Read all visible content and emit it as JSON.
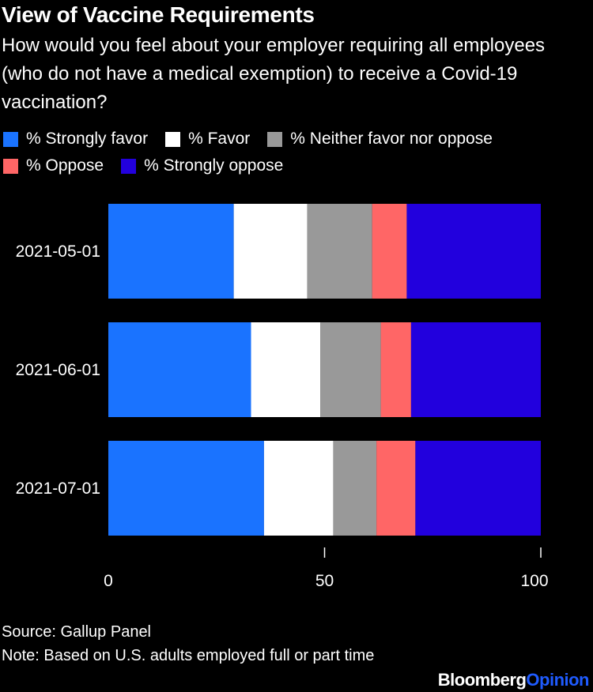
{
  "title": "View of Vaccine Requirements",
  "subtitle": "How would you feel about your employer requiring all employees (who do not have a medical exemption) to receive a Covid-19 vaccination?",
  "source": "Source: Gallup Panel",
  "note": "Note: Based on U.S. adults employed full or part time",
  "brand": {
    "part1": "Bloomberg",
    "part2": "Opinion"
  },
  "colors": {
    "background": "#000000",
    "strongly_favor": "#1a73ff",
    "favor": "#ffffff",
    "neither": "#999999",
    "oppose": "#ff6666",
    "strongly_oppose": "#2200dd"
  },
  "chart_data": {
    "type": "bar",
    "orientation": "horizontal",
    "stacked": true,
    "title": "View of Vaccine Requirements",
    "categories": [
      "2021-05-01",
      "2021-06-01",
      "2021-07-01"
    ],
    "series": [
      {
        "name": "% Strongly favor",
        "values": [
          29,
          33,
          36
        ]
      },
      {
        "name": "% Favor",
        "values": [
          17,
          16,
          16
        ]
      },
      {
        "name": "% Neither favor nor oppose",
        "values": [
          15,
          14,
          10
        ]
      },
      {
        "name": "% Oppose",
        "values": [
          8,
          7,
          9
        ]
      },
      {
        "name": "% Strongly oppose",
        "values": [
          31,
          30,
          29
        ]
      }
    ],
    "xlim": [
      0,
      100
    ],
    "xticks": [
      0,
      50,
      100
    ],
    "legend_position": "top"
  }
}
